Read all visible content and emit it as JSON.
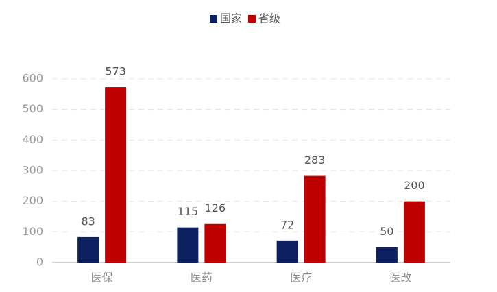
{
  "chart_data": {
    "type": "bar",
    "categories": [
      "医保",
      "医药",
      "医疗",
      "医改"
    ],
    "series": [
      {
        "name": "国家",
        "color": "#0d2160",
        "values": [
          83,
          115,
          72,
          50
        ]
      },
      {
        "name": "省级",
        "color": "#c00000",
        "values": [
          573,
          126,
          283,
          200
        ]
      }
    ],
    "ylim": [
      0,
      600
    ],
    "yticks": [
      0,
      100,
      200,
      300,
      400,
      500,
      600
    ],
    "grid": true,
    "legend": "top"
  }
}
